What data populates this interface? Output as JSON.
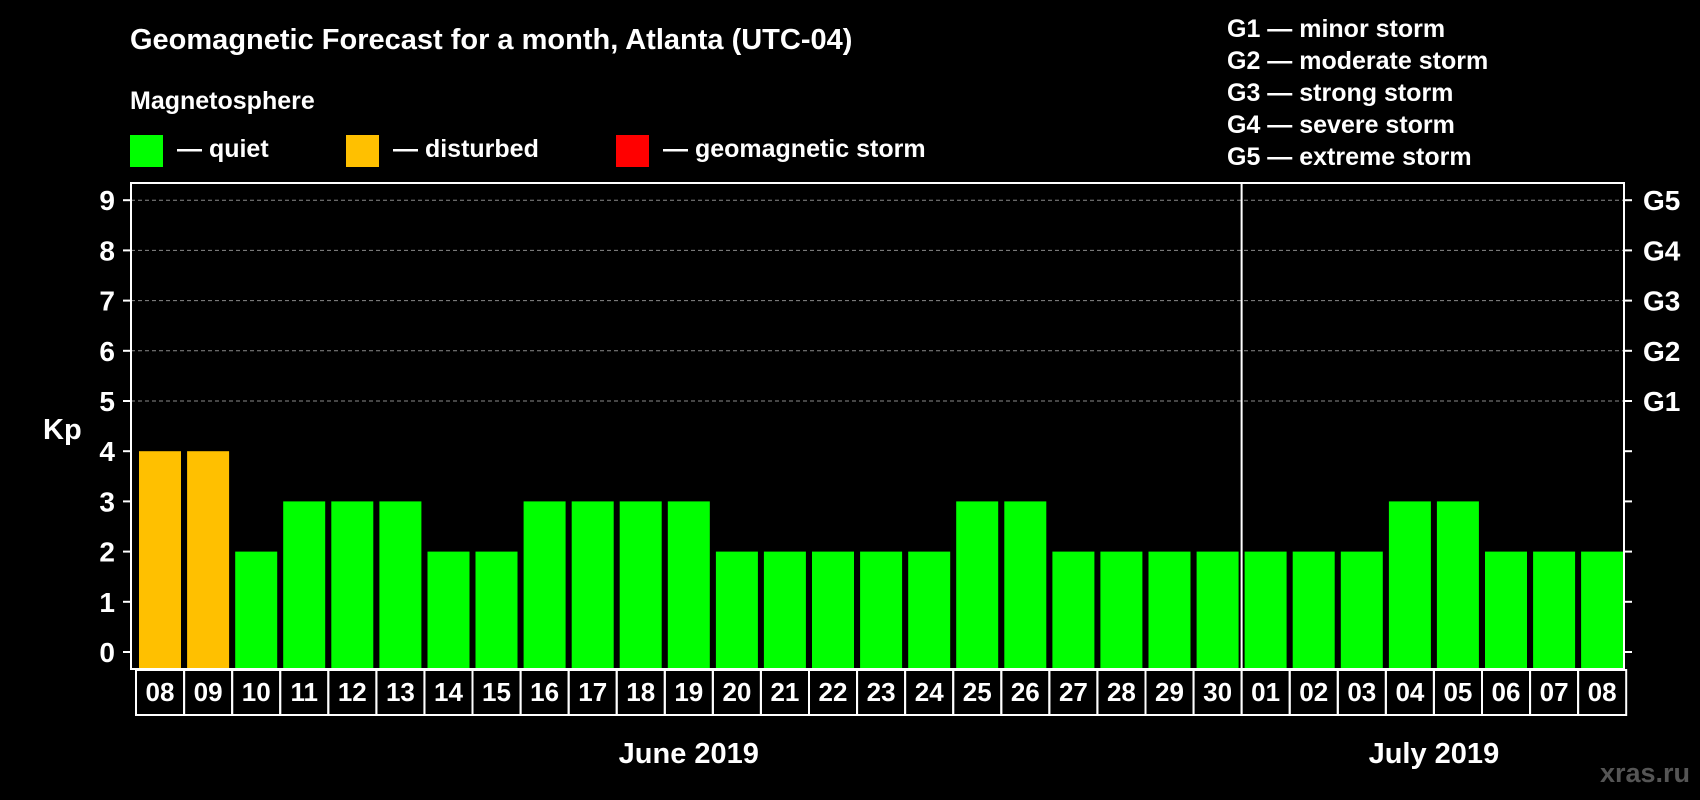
{
  "colors": {
    "quiet": "#00ff00",
    "disturbed": "#ffc000",
    "storm": "#ff0000",
    "background": "#000000",
    "text": "#ffffff",
    "grid": "#8a8a8a"
  },
  "legend": {
    "section_title": "Magnetosphere",
    "items": [
      {
        "key": "quiet",
        "label": "— quiet"
      },
      {
        "key": "disturbed",
        "label": "— disturbed"
      },
      {
        "key": "storm",
        "label": "— geomagnetic storm"
      }
    ]
  },
  "storm_scale": [
    "G1 — minor storm",
    "G2 — moderate storm",
    "G3 — strong storm",
    "G4 — severe storm",
    "G5 — extreme storm"
  ],
  "watermark": "xras.ru",
  "chart_data": {
    "type": "bar",
    "title": "Geomagnetic Forecast for a month, Atlanta (UTC-04)",
    "ylabel": "Kp",
    "ylim": [
      0,
      9
    ],
    "yticks": [
      "0",
      "1",
      "2",
      "3",
      "4",
      "5",
      "6",
      "7",
      "8",
      "9"
    ],
    "right_axis_labels": [
      {
        "value": 5,
        "label": "G1"
      },
      {
        "value": 6,
        "label": "G2"
      },
      {
        "value": 7,
        "label": "G3"
      },
      {
        "value": 8,
        "label": "G4"
      },
      {
        "value": 9,
        "label": "G5"
      }
    ],
    "grid": true,
    "categories": [
      "08",
      "09",
      "10",
      "11",
      "12",
      "13",
      "14",
      "15",
      "16",
      "17",
      "18",
      "19",
      "20",
      "21",
      "22",
      "23",
      "24",
      "25",
      "26",
      "27",
      "28",
      "29",
      "30",
      "01",
      "02",
      "03",
      "04",
      "05",
      "06",
      "07",
      "08"
    ],
    "values": [
      4,
      4,
      2,
      3,
      3,
      3,
      2,
      2,
      3,
      3,
      3,
      3,
      2,
      2,
      2,
      2,
      2,
      3,
      3,
      2,
      2,
      2,
      2,
      2,
      2,
      2,
      3,
      3,
      2,
      2,
      2
    ],
    "status": [
      "disturbed",
      "disturbed",
      "quiet",
      "quiet",
      "quiet",
      "quiet",
      "quiet",
      "quiet",
      "quiet",
      "quiet",
      "quiet",
      "quiet",
      "quiet",
      "quiet",
      "quiet",
      "quiet",
      "quiet",
      "quiet",
      "quiet",
      "quiet",
      "quiet",
      "quiet",
      "quiet",
      "quiet",
      "quiet",
      "quiet",
      "quiet",
      "quiet",
      "quiet",
      "quiet",
      "quiet"
    ],
    "months": [
      {
        "label": "June 2019",
        "start_index": 0,
        "end_index": 22
      },
      {
        "label": "July 2019",
        "start_index": 23,
        "end_index": 30
      }
    ]
  }
}
